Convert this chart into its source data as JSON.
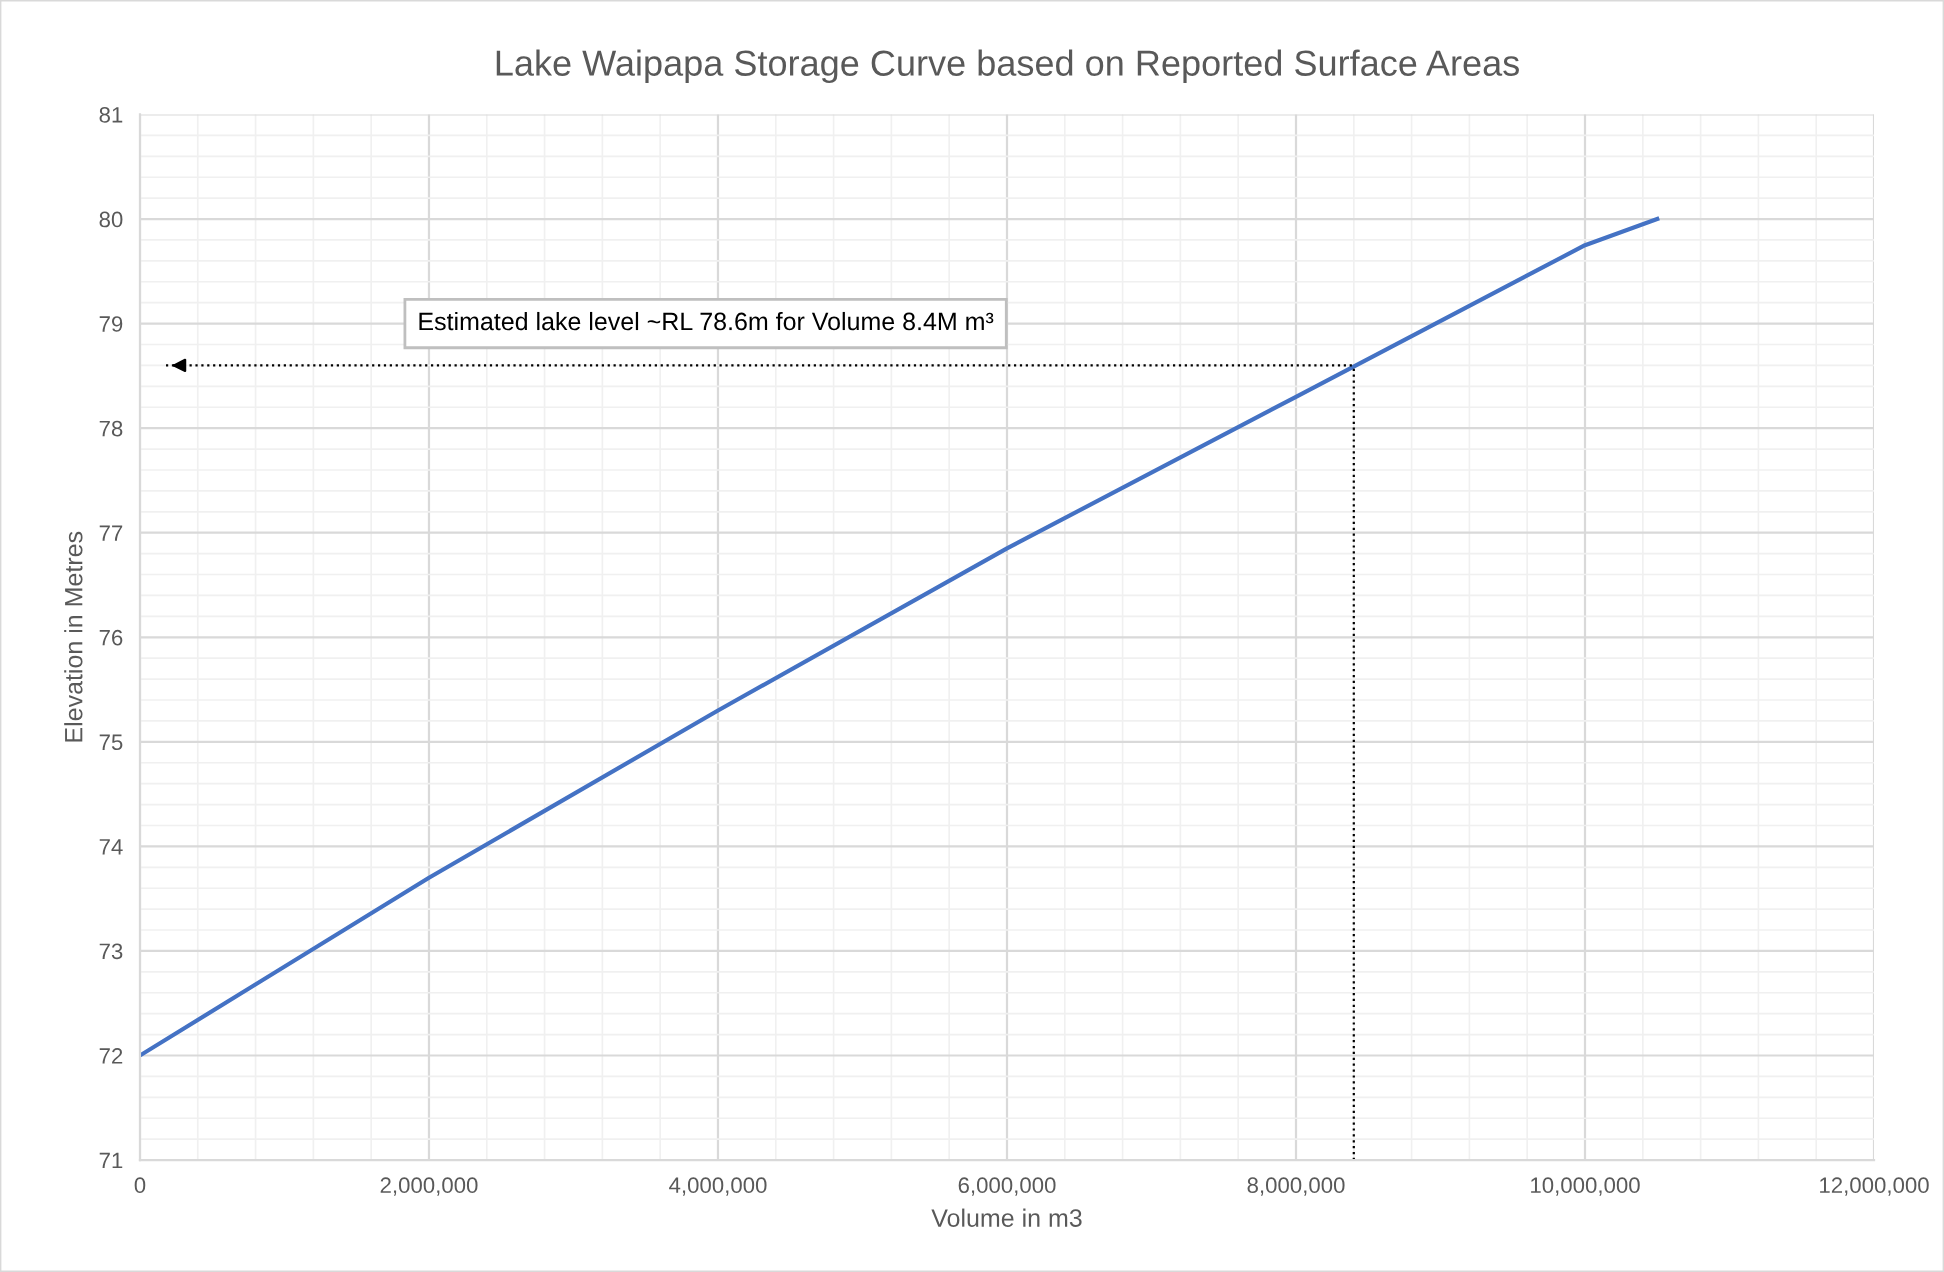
{
  "chart_data": {
    "type": "line",
    "title": "Lake Waipapa Storage Curve based on Reported Surface Areas",
    "xlabel": "Volume in m3",
    "ylabel": "Elevation in Metres",
    "x": [
      0,
      2000000,
      4000000,
      6000000,
      8000000,
      10000000,
      10500000
    ],
    "series": [
      {
        "color": "#4472c4",
        "values": [
          72,
          73.7,
          75.3,
          76.85,
          78.3,
          79.75,
          80
        ]
      }
    ],
    "xlim": [
      0,
      12000000
    ],
    "xticks": [
      {
        "value": 0,
        "label": "0"
      },
      {
        "value": 2000000,
        "label": "2,000,000"
      },
      {
        "value": 4000000,
        "label": "4,000,000"
      },
      {
        "value": 6000000,
        "label": "6,000,000"
      },
      {
        "value": 8000000,
        "label": "8,000,000"
      },
      {
        "value": 10000000,
        "label": "10,000,000"
      },
      {
        "value": 12000000,
        "label": "12,000,000"
      }
    ],
    "ylim": [
      71,
      81
    ],
    "yticks": [
      71,
      72,
      73,
      74,
      75,
      76,
      77,
      78,
      79,
      80,
      81
    ],
    "grid": true,
    "legend": false,
    "marker": "none",
    "line_style": "solid",
    "ref_lines": [
      {
        "axis": "x",
        "value": 8400000,
        "color": "#000000",
        "line_style": "dotted"
      },
      {
        "axis": "y",
        "value": 78.6,
        "color": "#000000",
        "line_style": "dotted"
      }
    ],
    "annotations": [
      "Estimated lake level ~RL 78.6m for Volume 8.4M m³"
    ]
  }
}
